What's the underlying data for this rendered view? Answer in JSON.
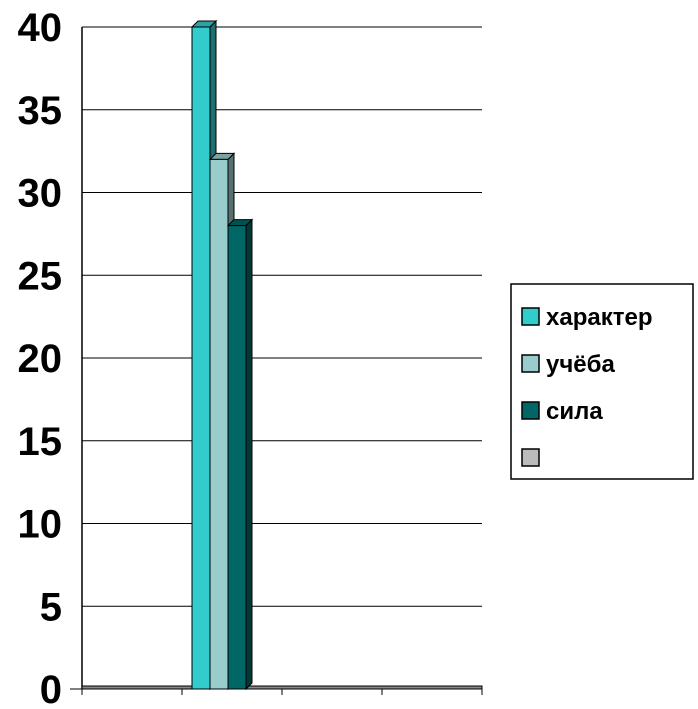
{
  "chart_data": {
    "type": "bar",
    "categories": [
      "",
      "",
      "",
      ""
    ],
    "series": [
      {
        "name": "характер",
        "color": "#33CCCC",
        "values": [
          null,
          40,
          null,
          null
        ]
      },
      {
        "name": "учёба",
        "color": "#99CCCC",
        "values": [
          null,
          32,
          null,
          null
        ]
      },
      {
        "name": "сила",
        "color": "#006666",
        "values": [
          null,
          28,
          null,
          null
        ]
      },
      {
        "name": "",
        "color": "#BBBBBB",
        "values": [
          null,
          null,
          null,
          null
        ]
      }
    ],
    "yticks": [
      "0",
      "5",
      "10",
      "15",
      "20",
      "25",
      "30",
      "35",
      "40"
    ],
    "ylim": [
      0,
      40
    ],
    "grid": true,
    "legend": "right",
    "bar_style": "3d"
  }
}
